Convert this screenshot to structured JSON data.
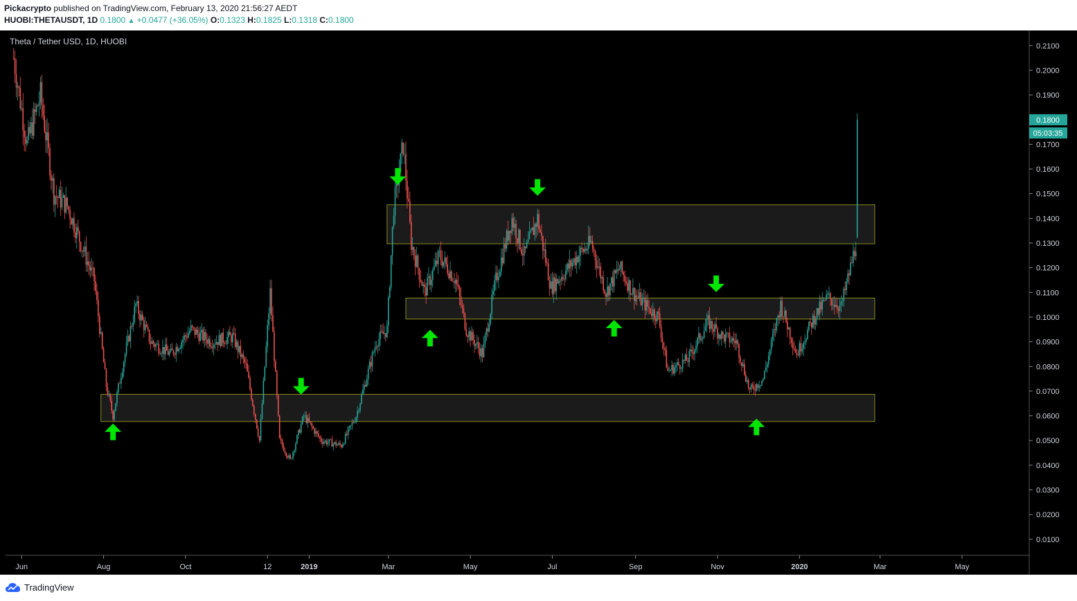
{
  "header": {
    "author": "Pickacrypto",
    "published_text": "published on TradingView.com, February 13, 2020 21:56:27 AEDT",
    "symbol": "HUOBI:THETAUSDT, 1D",
    "last": "0.1800",
    "change": "+0.0477 (+36.05%)",
    "o_label": "O:",
    "o": "0.1323",
    "h_label": "H:",
    "h": "0.1825",
    "l_label": "L:",
    "l": "0.1318",
    "c_label": "C:",
    "c": "0.1800"
  },
  "footer": {
    "brand": "TradingView"
  },
  "colors": {
    "up": "#26a69a",
    "down": "#ef5350",
    "zone_fill": "#1b1b1b",
    "zone_stroke": "#8c8c1e",
    "arrow": "#00e600",
    "price_tag": "#26a69a"
  },
  "chart_data": {
    "type": "candlestick",
    "title": "Theta / Tether USD, 1D, HUOBI",
    "x_ticks": [
      "Jun",
      "Aug",
      "Oct",
      "12",
      "2019",
      "Mar",
      "May",
      "Jul",
      "Sep",
      "Nov",
      "2020",
      "Mar",
      "May"
    ],
    "y_ticks": [
      "0.0100",
      "0.0200",
      "0.0300",
      "0.0400",
      "0.0500",
      "0.0600",
      "0.0700",
      "0.0800",
      "0.0900",
      "0.1000",
      "0.1100",
      "0.1200",
      "0.1300",
      "0.1400",
      "0.1500",
      "0.1600",
      "0.1700",
      "0.1800",
      "0.1900",
      "0.2000",
      "0.2100"
    ],
    "ylim": [
      0.0,
      0.215
    ],
    "last_price": "0.1800",
    "countdown": "05:03:35",
    "price_path": [
      [
        "2018-05-26",
        0.205
      ],
      [
        "2018-06-05",
        0.17
      ],
      [
        "2018-06-15",
        0.19
      ],
      [
        "2018-06-25",
        0.15
      ],
      [
        "2018-07-05",
        0.145
      ],
      [
        "2018-07-15",
        0.13
      ],
      [
        "2018-07-25",
        0.115
      ],
      [
        "2018-08-03",
        0.072
      ],
      [
        "2018-08-08",
        0.06
      ],
      [
        "2018-08-15",
        0.08
      ],
      [
        "2018-08-25",
        0.105
      ],
      [
        "2018-09-05",
        0.09
      ],
      [
        "2018-09-20",
        0.085
      ],
      [
        "2018-10-05",
        0.095
      ],
      [
        "2018-10-20",
        0.09
      ],
      [
        "2018-11-05",
        0.092
      ],
      [
        "2018-11-15",
        0.08
      ],
      [
        "2018-11-25",
        0.05
      ],
      [
        "2018-12-03",
        0.11
      ],
      [
        "2018-12-10",
        0.05
      ],
      [
        "2018-12-18",
        0.042
      ],
      [
        "2018-12-28",
        0.06
      ],
      [
        "2019-01-10",
        0.05
      ],
      [
        "2019-01-25",
        0.048
      ],
      [
        "2019-02-05",
        0.06
      ],
      [
        "2019-02-20",
        0.09
      ],
      [
        "2019-02-28",
        0.095
      ],
      [
        "2019-03-05",
        0.145
      ],
      [
        "2019-03-12",
        0.17
      ],
      [
        "2019-03-18",
        0.13
      ],
      [
        "2019-03-28",
        0.11
      ],
      [
        "2019-04-08",
        0.125
      ],
      [
        "2019-04-20",
        0.115
      ],
      [
        "2019-04-28",
        0.095
      ],
      [
        "2019-05-10",
        0.085
      ],
      [
        "2019-05-20",
        0.115
      ],
      [
        "2019-06-01",
        0.14
      ],
      [
        "2019-06-10",
        0.125
      ],
      [
        "2019-06-20",
        0.14
      ],
      [
        "2019-06-30",
        0.112
      ],
      [
        "2019-07-10",
        0.118
      ],
      [
        "2019-07-20",
        0.125
      ],
      [
        "2019-07-30",
        0.13
      ],
      [
        "2019-08-10",
        0.11
      ],
      [
        "2019-08-20",
        0.12
      ],
      [
        "2019-08-30",
        0.11
      ],
      [
        "2019-09-10",
        0.104
      ],
      [
        "2019-09-18",
        0.1
      ],
      [
        "2019-09-25",
        0.078
      ],
      [
        "2019-10-10",
        0.083
      ],
      [
        "2019-10-25",
        0.098
      ],
      [
        "2019-11-05",
        0.092
      ],
      [
        "2019-11-15",
        0.09
      ],
      [
        "2019-11-25",
        0.07
      ],
      [
        "2019-12-05",
        0.075
      ],
      [
        "2019-12-18",
        0.105
      ],
      [
        "2019-12-30",
        0.085
      ],
      [
        "2020-01-12",
        0.1
      ],
      [
        "2020-01-22",
        0.108
      ],
      [
        "2020-02-01",
        0.104
      ],
      [
        "2020-02-08",
        0.12
      ],
      [
        "2020-02-12",
        0.13
      ],
      [
        "2020-02-13",
        0.18
      ]
    ],
    "zones": [
      {
        "from": "2019-02-28",
        "to": "2020-02-26",
        "low": 0.1297,
        "high": 0.1455
      },
      {
        "from": "2019-03-14",
        "to": "2020-02-26",
        "low": 0.0992,
        "high": 0.1077
      },
      {
        "from": "2018-07-30",
        "to": "2020-02-26",
        "low": 0.0577,
        "high": 0.0687
      }
    ],
    "arrows": [
      {
        "dir": "up",
        "date": "2018-08-08",
        "price": 0.0535
      },
      {
        "dir": "down",
        "date": "2018-12-26",
        "price": 0.072
      },
      {
        "dir": "down",
        "date": "2019-03-08",
        "price": 0.157
      },
      {
        "dir": "up",
        "date": "2019-04-01",
        "price": 0.0915
      },
      {
        "dir": "down",
        "date": "2019-06-20",
        "price": 0.1525
      },
      {
        "dir": "up",
        "date": "2019-08-16",
        "price": 0.0955
      },
      {
        "dir": "down",
        "date": "2019-10-31",
        "price": 0.1135
      },
      {
        "dir": "up",
        "date": "2019-11-30",
        "price": 0.0555
      }
    ]
  }
}
